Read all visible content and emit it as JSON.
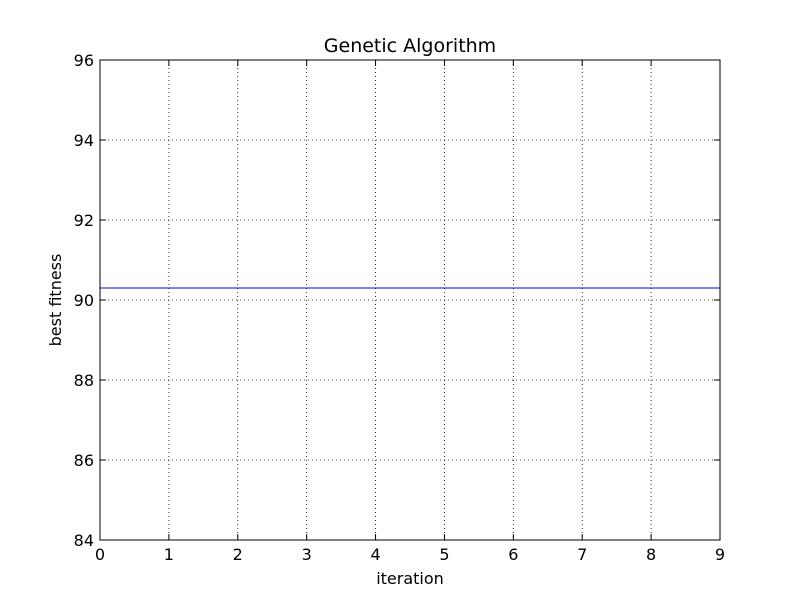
{
  "chart_data": {
    "type": "line",
    "title": "Genetic Algorithm",
    "xlabel": "iteration",
    "ylabel": "best fitness",
    "xlim": [
      0,
      9
    ],
    "ylim": [
      84,
      96
    ],
    "x_ticks": [
      0,
      1,
      2,
      3,
      4,
      5,
      6,
      7,
      8,
      9
    ],
    "y_ticks": [
      84,
      86,
      88,
      90,
      92,
      94,
      96
    ],
    "grid": true,
    "series": [
      {
        "x": [
          0,
          1,
          2,
          3,
          4,
          5,
          6,
          7,
          8,
          9
        ],
        "y": [
          90.3,
          90.3,
          90.3,
          90.3,
          90.3,
          90.3,
          90.3,
          90.3,
          90.3,
          90.3
        ],
        "color": "#0000ff"
      }
    ]
  }
}
